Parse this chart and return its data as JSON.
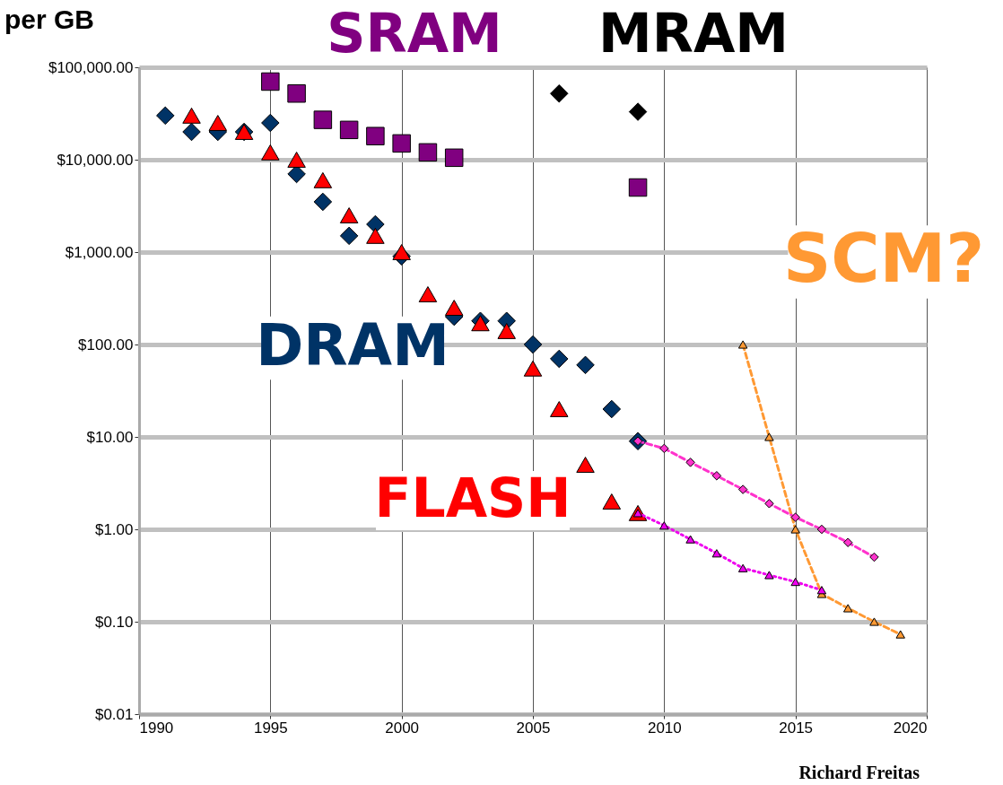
{
  "chart_data": {
    "type": "scatter",
    "title": "per GB",
    "xlim": [
      1990,
      2020
    ],
    "xticks": [
      1990,
      1995,
      2000,
      2005,
      2010,
      2015,
      2020
    ],
    "ylim": [
      0.01,
      100000
    ],
    "log": "y",
    "grid": true,
    "yticks": [
      {
        "value": 0.01,
        "label": "$0.01"
      },
      {
        "value": 0.1,
        "label": "$0.10"
      },
      {
        "value": 1,
        "label": "$1.00"
      },
      {
        "value": 10,
        "label": "$10.00"
      },
      {
        "value": 100,
        "label": "$100.00"
      },
      {
        "value": 1000,
        "label": "$1,000.00"
      },
      {
        "value": 10000,
        "label": "$10,000.00"
      },
      {
        "value": 100000,
        "label": "$100,000.00"
      }
    ],
    "series": [
      {
        "marker": "square",
        "color": "#800080",
        "x": [
          1995,
          1996,
          1997,
          1998,
          1999,
          2000,
          2001,
          2002,
          2009
        ],
        "values": [
          70000,
          52000,
          27000,
          21000,
          18000,
          15000,
          12000,
          10500,
          5000
        ]
      },
      {
        "marker": "diamond",
        "color": "#000000",
        "x": [
          2006,
          2009
        ],
        "values": [
          52000,
          33000
        ]
      },
      {
        "marker": "diamond",
        "color": "#003366",
        "x": [
          1991,
          1992,
          1993,
          1994,
          1995,
          1996,
          1997,
          1998,
          1999,
          2000,
          2002,
          2003,
          2004,
          2005,
          2006,
          2007,
          2008,
          2009
        ],
        "values": [
          30000,
          20000,
          20000,
          20000,
          25000,
          7000,
          3500,
          1500,
          2000,
          900,
          200,
          180,
          180,
          100,
          70,
          60,
          20,
          9
        ]
      },
      {
        "marker": "triangle",
        "color": "#ff0000",
        "x": [
          1992,
          1993,
          1994,
          1995,
          1996,
          1997,
          1998,
          1999,
          2000,
          2001,
          2002,
          2003,
          2004,
          2005,
          2006,
          2007,
          2008,
          2009
        ],
        "values": [
          30000,
          25000,
          20000,
          12000,
          10000,
          6000,
          2500,
          1500,
          1000,
          350,
          250,
          170,
          140,
          55,
          20,
          5,
          2,
          1.5
        ]
      },
      {
        "type": "line",
        "marker": "triangle",
        "line_style": "dashed",
        "color": "#ff9933",
        "x": [
          2013,
          2014,
          2015,
          2016,
          2017,
          2018,
          2019
        ],
        "values": [
          100,
          10,
          1,
          0.2,
          0.14,
          0.1,
          0.073
        ]
      },
      {
        "type": "line",
        "marker": "diamond",
        "line_style": "dashed",
        "color": "#ff33cc",
        "x": [
          2009,
          2010,
          2011,
          2012,
          2013,
          2014,
          2015,
          2016,
          2017,
          2018
        ],
        "values": [
          9,
          7.5,
          5.3,
          3.8,
          2.7,
          1.9,
          1.35,
          1.0,
          0.72,
          0.5
        ]
      },
      {
        "type": "line",
        "marker": "triangle",
        "line_style": "dotted",
        "color": "#ee00ee",
        "x": [
          2009,
          2010,
          2011,
          2012,
          2013,
          2014,
          2015,
          2016
        ],
        "values": [
          1.5,
          1.1,
          0.78,
          0.55,
          0.38,
          0.32,
          0.27,
          0.22
        ]
      }
    ],
    "annotations": [
      "SRAM",
      "MRAM",
      "DRAM",
      "FLASH",
      "SCM?",
      "Richard  Freitas"
    ]
  }
}
